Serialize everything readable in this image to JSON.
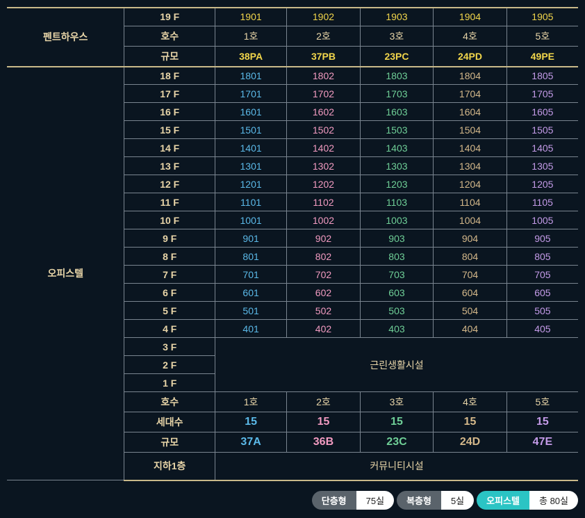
{
  "sections": {
    "penthouse": "펜트하우스",
    "officetel": "오피스텔"
  },
  "labels": {
    "unit": "호수",
    "scale": "규모",
    "households": "세대수",
    "basement": "지하1층",
    "facilities": "근린생활시설",
    "community": "커뮤니티시설"
  },
  "penthouse": {
    "floor": "19 F",
    "unitnums": [
      "1901",
      "1902",
      "1903",
      "1904",
      "1905"
    ],
    "units": [
      "1호",
      "2호",
      "3호",
      "4호",
      "5호"
    ],
    "scale": [
      "38PA",
      "37PB",
      "23PC",
      "24PD",
      "49PE"
    ]
  },
  "officetel": {
    "floors": [
      "18 F",
      "17 F",
      "16 F",
      "15 F",
      "14 F",
      "13 F",
      "12 F",
      "11 F",
      "10 F",
      "9 F",
      "8 F",
      "7 F",
      "6 F",
      "5 F",
      "4 F"
    ],
    "cells": [
      [
        "1801",
        "1802",
        "1803",
        "1804",
        "1805"
      ],
      [
        "1701",
        "1702",
        "1703",
        "1704",
        "1705"
      ],
      [
        "1601",
        "1602",
        "1603",
        "1604",
        "1605"
      ],
      [
        "1501",
        "1502",
        "1503",
        "1504",
        "1505"
      ],
      [
        "1401",
        "1402",
        "1403",
        "1404",
        "1405"
      ],
      [
        "1301",
        "1302",
        "1303",
        "1304",
        "1305"
      ],
      [
        "1201",
        "1202",
        "1203",
        "1204",
        "1205"
      ],
      [
        "1101",
        "1102",
        "1103",
        "1104",
        "1105"
      ],
      [
        "1001",
        "1002",
        "1003",
        "1004",
        "1005"
      ],
      [
        "901",
        "902",
        "903",
        "904",
        "905"
      ],
      [
        "801",
        "802",
        "803",
        "804",
        "805"
      ],
      [
        "701",
        "702",
        "703",
        "704",
        "705"
      ],
      [
        "601",
        "602",
        "603",
        "604",
        "605"
      ],
      [
        "501",
        "502",
        "503",
        "504",
        "505"
      ],
      [
        "401",
        "402",
        "403",
        "404",
        "405"
      ]
    ],
    "lowfloors": [
      "3 F",
      "2 F",
      "1 F"
    ],
    "units": [
      "1호",
      "2호",
      "3호",
      "4호",
      "5호"
    ],
    "households": [
      "15",
      "15",
      "15",
      "15",
      "15"
    ],
    "scale": [
      "37A",
      "36B",
      "23C",
      "24D",
      "47E"
    ]
  },
  "colors": {
    "col": [
      "blue",
      "pink",
      "green",
      "tan",
      "purple"
    ]
  },
  "legend": {
    "single": "단층형",
    "single_val": "75실",
    "duplex": "복층형",
    "duplex_val": "5실",
    "officetel": "오피스텔",
    "total": "총 80실"
  }
}
